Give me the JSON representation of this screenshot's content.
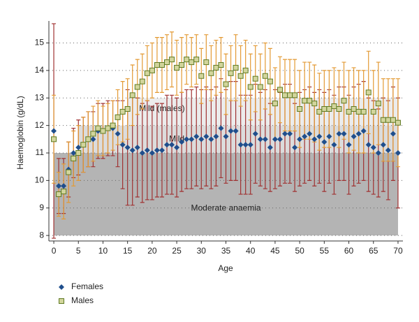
{
  "chart_data": {
    "type": "scatter",
    "xlabel": "Age",
    "ylabel": "Haemoglobin (g/dL)",
    "x": [
      0,
      1,
      2,
      3,
      4,
      5,
      6,
      7,
      8,
      9,
      10,
      11,
      12,
      13,
      14,
      15,
      16,
      17,
      18,
      19,
      20,
      21,
      22,
      23,
      24,
      25,
      26,
      27,
      28,
      29,
      30,
      31,
      32,
      33,
      34,
      35,
      36,
      37,
      38,
      39,
      40,
      41,
      42,
      43,
      44,
      45,
      46,
      47,
      48,
      49,
      50,
      51,
      52,
      53,
      54,
      55,
      56,
      57,
      58,
      59,
      60,
      61,
      62,
      63,
      64,
      65,
      66,
      67,
      68,
      69,
      70
    ],
    "xlim": [
      -1,
      71
    ],
    "xticks": [
      0,
      5,
      10,
      15,
      20,
      25,
      30,
      35,
      40,
      45,
      50,
      55,
      60,
      65,
      70
    ],
    "ylim": [
      7.8,
      15.8
    ],
    "yticks": [
      8,
      9,
      10,
      11,
      12,
      13,
      14,
      15
    ],
    "grid": true,
    "legend": "bottom-left",
    "bands": [
      {
        "label": "Moderate anaemia",
        "range": [
          8,
          11
        ],
        "xrange": [
          0,
          70
        ],
        "color": "#b4b4b4"
      },
      {
        "label": "Mild",
        "range": [
          11,
          12
        ],
        "xrange": [
          5,
          70
        ],
        "color": "#dcdcdc"
      },
      {
        "label": "Mild (males)",
        "range": [
          12,
          13
        ],
        "xrange": [
          15,
          70
        ],
        "color": "#ececec"
      }
    ],
    "series": [
      {
        "name": "Females",
        "color": "#1f4e8c",
        "error_color": "#a03232",
        "marker": "diamond",
        "values": [
          11.8,
          9.8,
          9.8,
          10.4,
          11.0,
          11.2,
          11.3,
          11.5,
          11.5,
          11.8,
          11.8,
          11.9,
          11.9,
          11.7,
          11.3,
          11.2,
          11.1,
          11.2,
          11.0,
          11.1,
          11.0,
          11.1,
          11.1,
          11.3,
          11.3,
          11.2,
          11.4,
          11.5,
          11.5,
          11.6,
          11.5,
          11.6,
          11.5,
          11.6,
          11.9,
          11.6,
          11.8,
          11.8,
          11.3,
          11.3,
          11.3,
          11.7,
          11.5,
          11.5,
          11.2,
          11.5,
          11.5,
          11.7,
          11.7,
          11.2,
          11.5,
          11.6,
          11.7,
          11.5,
          11.6,
          11.4,
          11.6,
          11.3,
          11.7,
          11.7,
          11.3,
          11.6,
          11.7,
          11.8,
          11.3,
          11.2,
          11.0,
          11.3,
          11.1,
          11.7,
          11.0
        ],
        "errors": [
          3.9,
          1.0,
          1.0,
          1.0,
          0.9,
          1.0,
          1.0,
          1.0,
          1.0,
          1.0,
          1.0,
          1.0,
          1.0,
          1.2,
          1.6,
          2.1,
          2.0,
          1.8,
          1.8,
          1.8,
          1.7,
          1.7,
          1.7,
          1.8,
          1.8,
          1.8,
          1.8,
          1.8,
          1.8,
          1.8,
          1.8,
          1.8,
          1.8,
          1.8,
          1.8,
          1.7,
          1.8,
          1.8,
          1.8,
          1.8,
          1.8,
          1.8,
          1.7,
          1.8,
          1.6,
          1.8,
          1.7,
          1.8,
          1.8,
          1.6,
          1.7,
          1.7,
          1.7,
          1.7,
          1.7,
          1.8,
          1.7,
          1.8,
          1.7,
          1.7,
          1.8,
          1.8,
          1.8,
          1.8,
          1.7,
          1.7,
          1.6,
          1.7,
          1.8,
          1.7,
          2.0
        ]
      },
      {
        "name": "Males",
        "color": "#d2d59c",
        "error_color": "#e39a34",
        "marker": "square",
        "values": [
          11.5,
          9.5,
          9.6,
          10.3,
          10.8,
          11.0,
          11.3,
          11.5,
          11.7,
          11.9,
          11.8,
          11.9,
          12.0,
          12.3,
          12.5,
          12.6,
          13.1,
          13.4,
          13.6,
          13.9,
          14.0,
          14.2,
          14.2,
          14.3,
          14.4,
          14.1,
          14.2,
          14.4,
          14.3,
          14.4,
          13.8,
          14.3,
          13.9,
          14.1,
          14.2,
          13.5,
          13.9,
          14.1,
          13.8,
          14.0,
          13.4,
          13.7,
          13.4,
          13.8,
          13.6,
          12.8,
          13.3,
          13.1,
          13.1,
          13.1,
          12.6,
          12.9,
          12.9,
          12.8,
          12.5,
          12.6,
          12.6,
          12.7,
          12.6,
          12.9,
          12.5,
          12.6,
          12.5,
          12.5,
          13.2,
          12.5,
          12.8,
          12.2,
          12.2,
          12.2,
          12.1
        ],
        "errors": [
          1.6,
          0.8,
          1.0,
          1.1,
          1.0,
          1.0,
          1.0,
          1.0,
          1.0,
          1.0,
          0.9,
          0.9,
          0.9,
          1.0,
          1.1,
          1.1,
          1.1,
          1.0,
          1.0,
          1.0,
          1.0,
          1.0,
          1.0,
          1.0,
          1.0,
          1.0,
          1.0,
          0.9,
          0.9,
          0.9,
          1.0,
          1.0,
          1.0,
          1.0,
          1.0,
          1.1,
          1.0,
          1.2,
          1.1,
          1.1,
          1.2,
          1.2,
          1.2,
          1.2,
          1.2,
          1.3,
          1.2,
          1.3,
          1.3,
          1.3,
          1.4,
          1.4,
          1.4,
          1.4,
          1.4,
          1.4,
          1.4,
          1.4,
          1.4,
          1.4,
          1.5,
          1.5,
          1.5,
          1.5,
          1.5,
          1.5,
          1.5,
          1.5,
          1.5,
          1.5,
          1.6
        ]
      }
    ]
  }
}
